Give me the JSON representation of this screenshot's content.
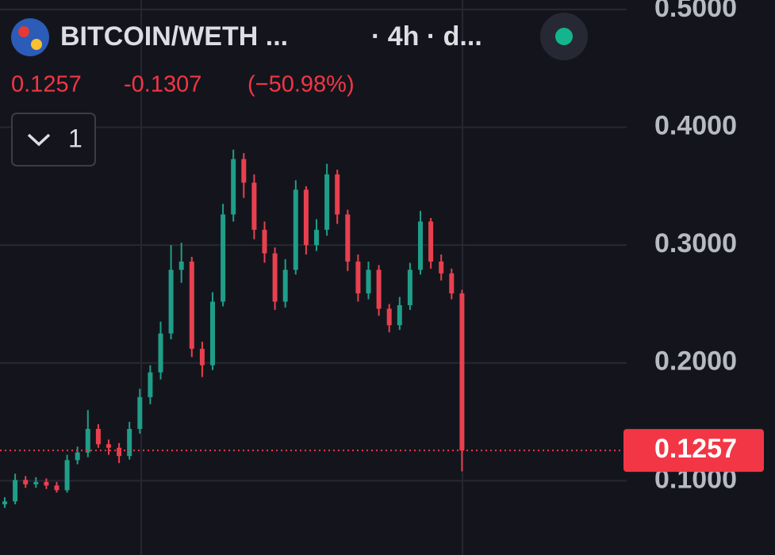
{
  "chart_data": {
    "type": "candlestick",
    "title": "BITCOIN/WETH ...",
    "subtitle": "· 4h · d...",
    "last_price": 0.1257,
    "change": -0.1307,
    "change_percent": {
      "value": -50.98,
      "label": "(−50.98%)"
    },
    "indicators": 1,
    "up_color": "#1f9e89",
    "down_color": "#e8404f",
    "ylim": [
      0.037,
      0.508
    ],
    "yticks": [
      {
        "value": 0.1,
        "label": "0.1000"
      },
      {
        "value": 0.2,
        "label": "0.2000"
      },
      {
        "value": 0.3,
        "label": "0.3000"
      },
      {
        "value": 0.4,
        "label": "0.4000"
      },
      {
        "value": 0.5,
        "label": "0.5000"
      }
    ],
    "grid": true,
    "open": [
      0.08,
      0.0825,
      0.1007,
      0.097,
      0.099,
      0.096,
      0.092,
      0.1175,
      0.124,
      0.144,
      0.131,
      0.128,
      0.121,
      0.144,
      0.171,
      0.192,
      0.225,
      0.279,
      0.286,
      0.212,
      0.198,
      0.252,
      0.326,
      0.373,
      0.353,
      0.313,
      0.293,
      0.252,
      0.279,
      0.347,
      0.3,
      0.313,
      0.36,
      0.326,
      0.286,
      0.259,
      0.279,
      0.246,
      0.232,
      0.249,
      0.279,
      0.32,
      0.286,
      0.276,
      0.259
    ],
    "high": [
      0.086,
      0.106,
      0.104,
      0.103,
      0.102,
      0.099,
      0.122,
      0.129,
      0.16,
      0.148,
      0.135,
      0.132,
      0.15,
      0.178,
      0.198,
      0.235,
      0.3,
      0.302,
      0.29,
      0.218,
      0.26,
      0.335,
      0.381,
      0.378,
      0.36,
      0.32,
      0.298,
      0.288,
      0.355,
      0.35,
      0.322,
      0.369,
      0.364,
      0.33,
      0.292,
      0.286,
      0.283,
      0.25,
      0.256,
      0.285,
      0.329,
      0.323,
      0.292,
      0.28,
      0.262
    ],
    "low": [
      0.077,
      0.08,
      0.094,
      0.094,
      0.093,
      0.09,
      0.09,
      0.114,
      0.12,
      0.128,
      0.122,
      0.115,
      0.118,
      0.14,
      0.165,
      0.186,
      0.22,
      0.268,
      0.205,
      0.188,
      0.194,
      0.248,
      0.32,
      0.34,
      0.305,
      0.285,
      0.245,
      0.247,
      0.275,
      0.292,
      0.295,
      0.308,
      0.318,
      0.278,
      0.252,
      0.254,
      0.24,
      0.226,
      0.228,
      0.245,
      0.275,
      0.28,
      0.27,
      0.254,
      0.108
    ],
    "close": [
      0.0825,
      0.1007,
      0.097,
      0.099,
      0.096,
      0.092,
      0.1175,
      0.124,
      0.144,
      0.131,
      0.128,
      0.121,
      0.144,
      0.171,
      0.192,
      0.225,
      0.279,
      0.286,
      0.212,
      0.198,
      0.252,
      0.326,
      0.373,
      0.353,
      0.313,
      0.293,
      0.252,
      0.279,
      0.347,
      0.3,
      0.313,
      0.36,
      0.326,
      0.286,
      0.259,
      0.279,
      0.246,
      0.232,
      0.249,
      0.279,
      0.32,
      0.286,
      0.276,
      0.259,
      0.1257
    ]
  }
}
